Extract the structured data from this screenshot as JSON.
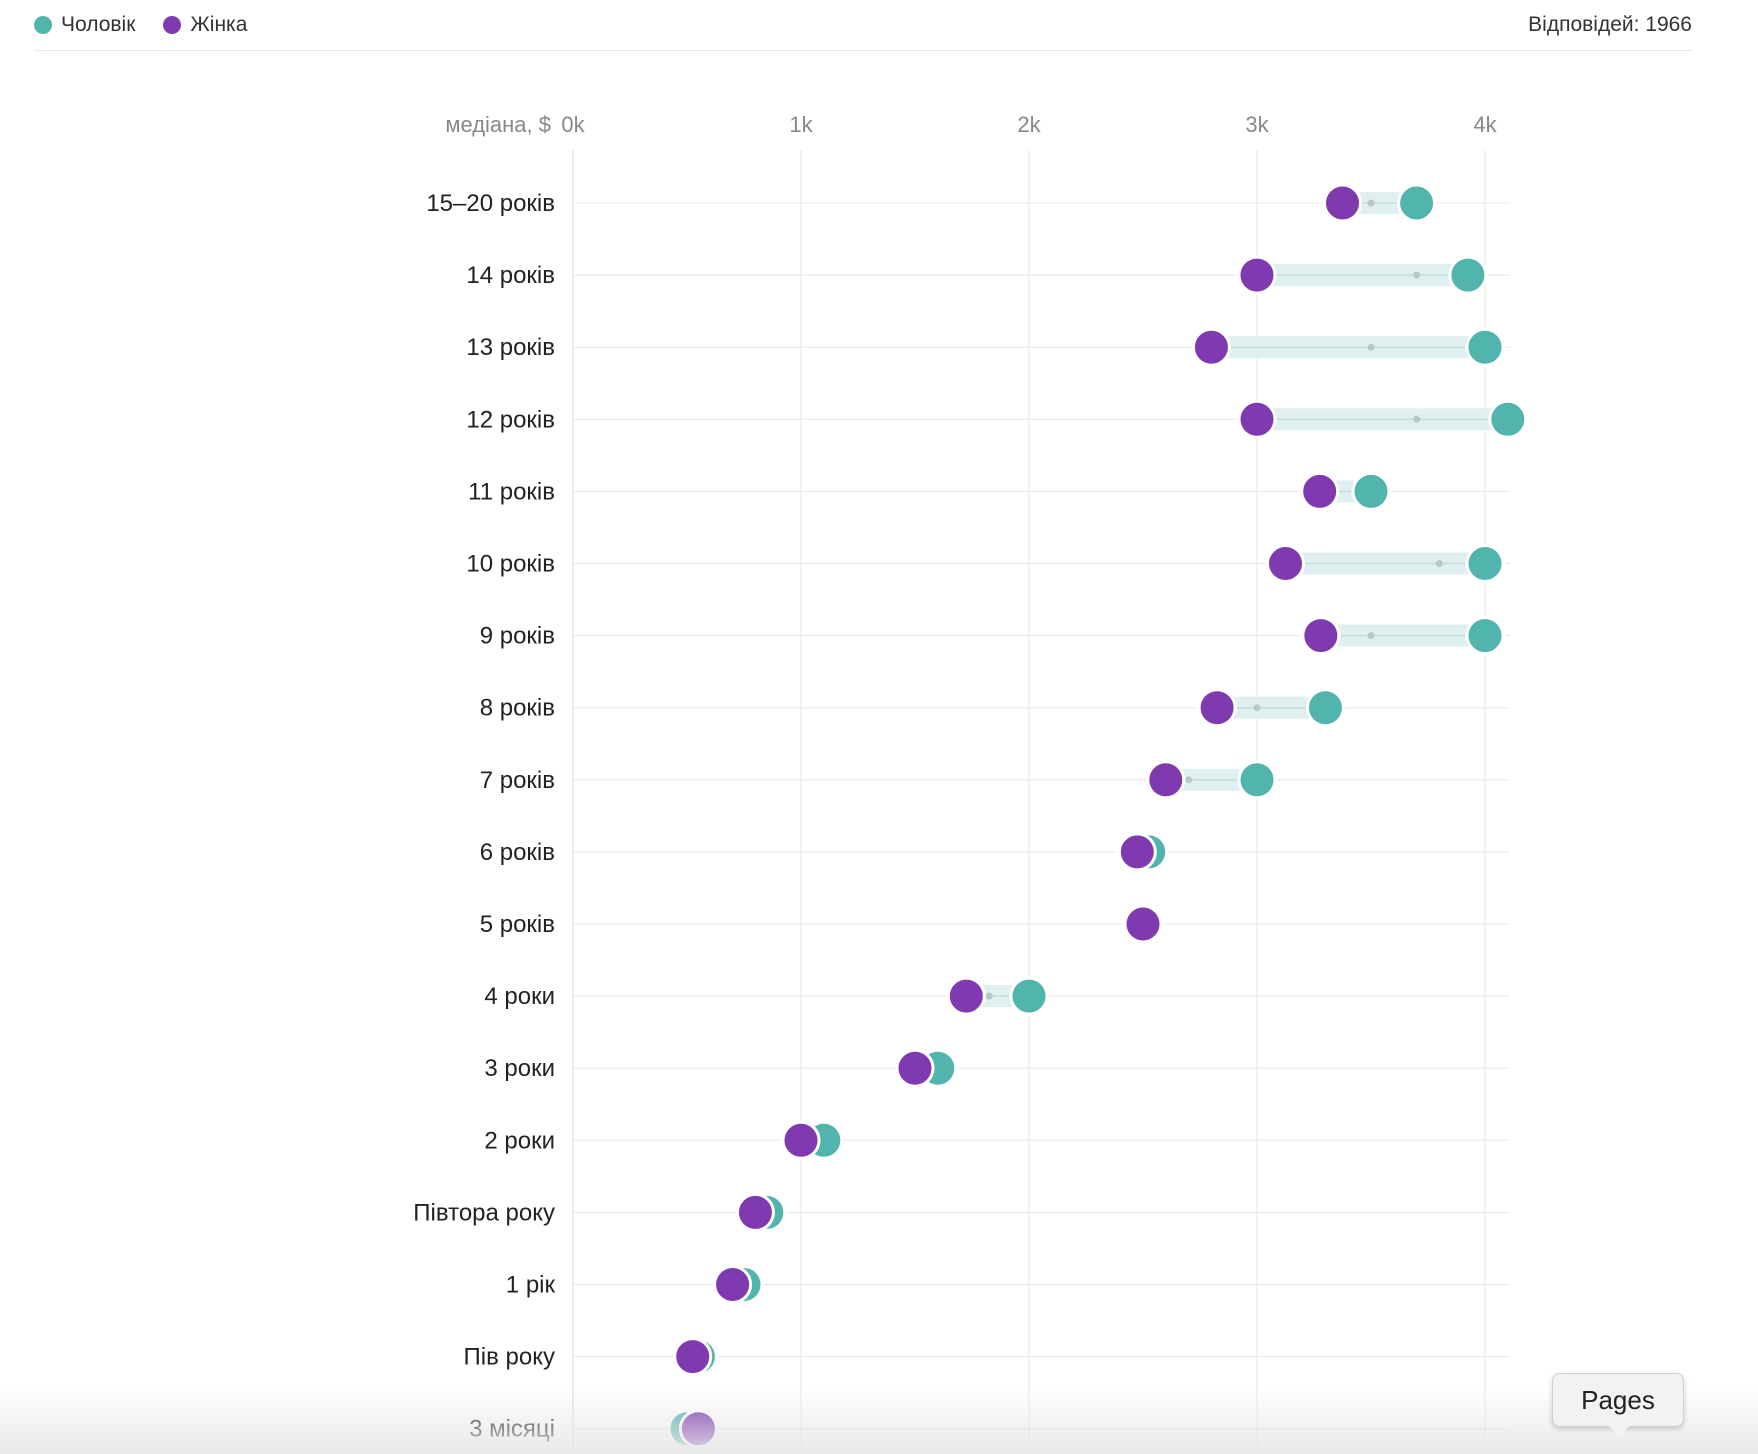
{
  "legend": {
    "items": [
      {
        "label": "Чоловік",
        "color": "#52b5ad"
      },
      {
        "label": "Жінка",
        "color": "#7f3aaf"
      }
    ],
    "responses": "Відповідей: 1966"
  },
  "pages_button": {
    "label": "Pages"
  },
  "chart_data": {
    "type": "dumbbell",
    "xlabel": "медіана, $",
    "x_ticks": [
      {
        "value": 0,
        "label": "0k"
      },
      {
        "value": 1000,
        "label": "1k"
      },
      {
        "value": 2000,
        "label": "2k"
      },
      {
        "value": 3000,
        "label": "3k"
      },
      {
        "value": 4000,
        "label": "4k"
      }
    ],
    "xlim": [
      0,
      4100
    ],
    "grid": true,
    "series": [
      {
        "name": "Чоловік",
        "color": "#52b5ad"
      },
      {
        "name": "Жінка",
        "color": "#7f3aaf"
      }
    ],
    "categories": [
      "15–20 років",
      "14 років",
      "13 років",
      "12 років",
      "11 років",
      "10 років",
      "9 років",
      "8 років",
      "7 років",
      "6 років",
      "5 років",
      "4 роки",
      "3 роки",
      "2 роки",
      "Півтора року",
      "1 рік",
      "Пів року",
      "3 місяці"
    ],
    "male": [
      3700,
      3925,
      4000,
      4100,
      3500,
      4000,
      4000,
      3300,
      3000,
      2525,
      2500,
      2000,
      1600,
      1100,
      850,
      750,
      550,
      500
    ],
    "female": [
      3375,
      3000,
      2800,
      3000,
      3275,
      3125,
      3280,
      2825,
      2600,
      2475,
      2500,
      1725,
      1500,
      1000,
      800,
      700,
      525,
      550
    ],
    "overall": [
      3500,
      3700,
      3500,
      3700,
      3450,
      3800,
      3500,
      3000,
      2700,
      2500,
      2500,
      1825,
      1550,
      1050,
      825,
      725,
      540,
      525
    ]
  }
}
